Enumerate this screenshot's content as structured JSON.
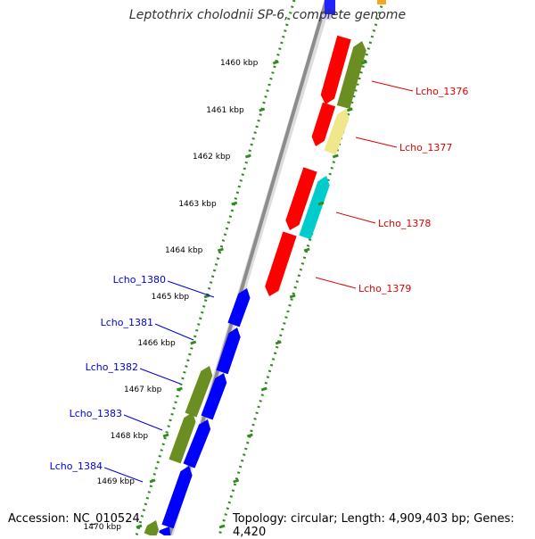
{
  "title": "Leptothrix cholodnii SP-6, complete genome",
  "footer": {
    "accession": "Accession: NC_010524",
    "summary": "Topology: circular; Length: 4,909,403 bp; Genes: 4,420"
  },
  "colors": {
    "backbone": "#8c8c8c",
    "tick_dots": "#2e8b1e",
    "forward_label": "#e00000",
    "reverse_label": "#0000dd",
    "red_gene": "#ff0000",
    "blue_gene": "#0000ff",
    "olive_gene": "#6b8e23",
    "khaki_gene": "#f0e68c",
    "cyan_gene": "#00cccc"
  },
  "ticks": [
    {
      "label": "1460 kbp"
    },
    {
      "label": "1461 kbp"
    },
    {
      "label": "1462 kbp"
    },
    {
      "label": "1463 kbp"
    },
    {
      "label": "1464 kbp"
    },
    {
      "label": "1465 kbp"
    },
    {
      "label": "1466 kbp"
    },
    {
      "label": "1467 kbp"
    },
    {
      "label": "1468 kbp"
    },
    {
      "label": "1469 kbp"
    },
    {
      "label": "1470 kbp"
    }
  ],
  "gene_labels": [
    {
      "text": "Lcho_1376",
      "strand": "forward"
    },
    {
      "text": "Lcho_1377",
      "strand": "forward"
    },
    {
      "text": "Lcho_1378",
      "strand": "forward"
    },
    {
      "text": "Lcho_1379",
      "strand": "forward"
    },
    {
      "text": "Lcho_1380",
      "strand": "reverse"
    },
    {
      "text": "Lcho_1381",
      "strand": "reverse"
    },
    {
      "text": "Lcho_1382",
      "strand": "reverse"
    },
    {
      "text": "Lcho_1383",
      "strand": "reverse"
    },
    {
      "text": "Lcho_1384",
      "strand": "reverse"
    }
  ]
}
